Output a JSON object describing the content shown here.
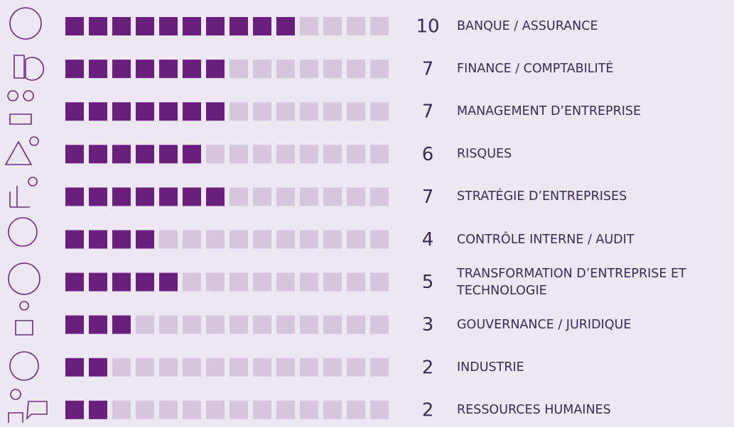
{
  "chart_data": {
    "type": "pictogram",
    "categories": [
      "BANQUE / ASSURANCE",
      "FINANCE / COMPTABILITÉ",
      "MANAGEMENT D’ENTREPRISE",
      "RISQUES",
      "STRATÉGIE D’ENTREPRISES",
      "CONTRÔLE INTERNE / AUDIT",
      "TRANSFORMATION D’ENTREPRISE ET TECHNOLOGIE",
      "GOUVERNANCE / JURIDIQUE",
      "INDUSTRIE",
      "RESSOURCES HUMAINES"
    ],
    "values": [
      10,
      7,
      7,
      6,
      7,
      4,
      5,
      3,
      2,
      2
    ],
    "xlim": [
      0,
      14
    ],
    "color": "#6b1f7d",
    "empty_color": "#d5c5dd"
  }
}
